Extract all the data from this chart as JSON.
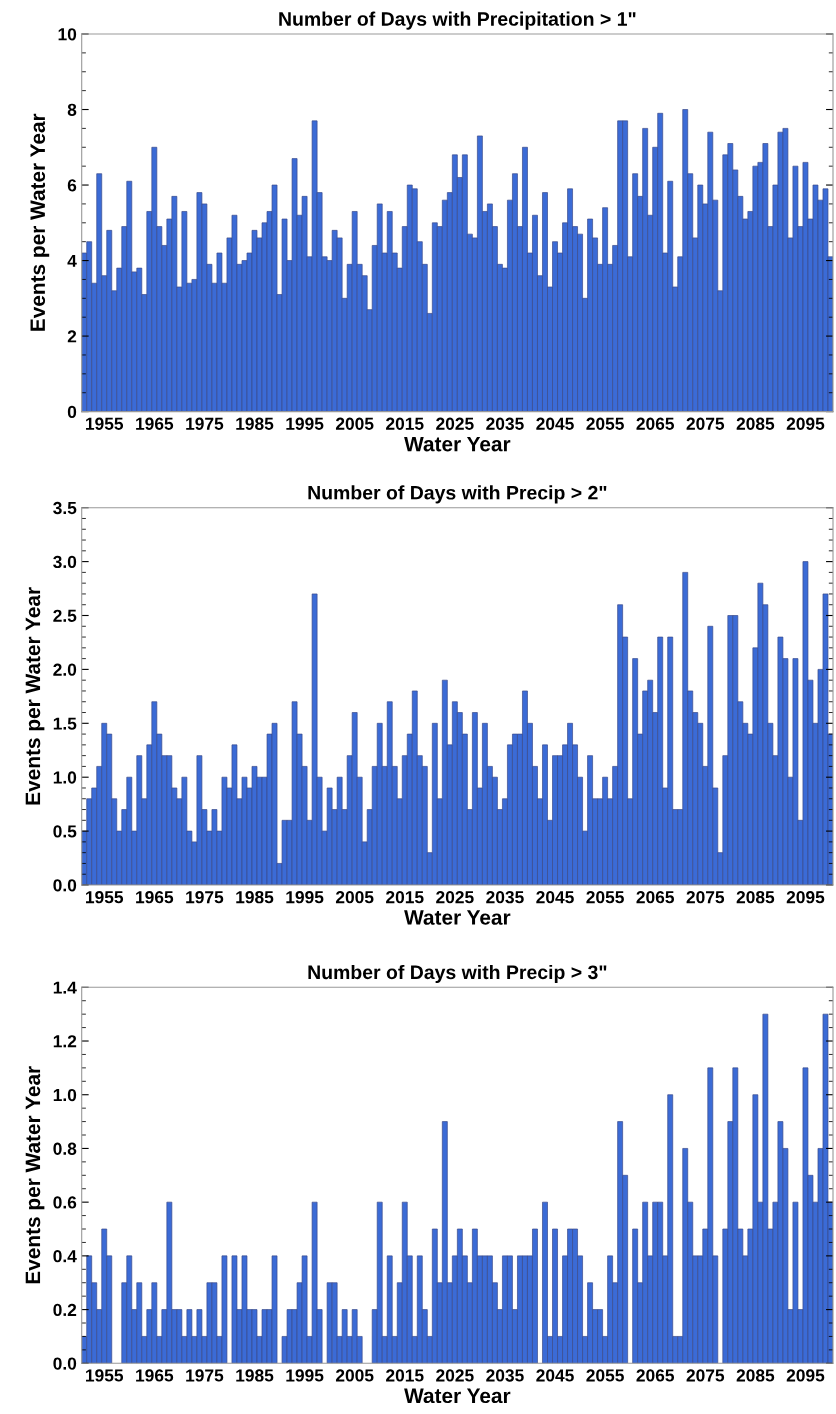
{
  "chart_data": [
    {
      "type": "bar",
      "title": "Number of Days with Precipitation > 1\"",
      "xlabel": "Water Year",
      "ylabel": "Events per Water Year",
      "x": [
        1951,
        1952,
        1953,
        1954,
        1955,
        1956,
        1957,
        1958,
        1959,
        1960,
        1961,
        1962,
        1963,
        1964,
        1965,
        1966,
        1967,
        1968,
        1969,
        1970,
        1971,
        1972,
        1973,
        1974,
        1975,
        1976,
        1977,
        1978,
        1979,
        1980,
        1981,
        1982,
        1983,
        1984,
        1985,
        1986,
        1987,
        1988,
        1989,
        1990,
        1991,
        1992,
        1993,
        1994,
        1995,
        1996,
        1997,
        1998,
        1999,
        2000,
        2001,
        2002,
        2003,
        2004,
        2005,
        2006,
        2007,
        2008,
        2009,
        2010,
        2011,
        2012,
        2013,
        2014,
        2015,
        2016,
        2017,
        2018,
        2019,
        2020,
        2021,
        2022,
        2023,
        2024,
        2025,
        2026,
        2027,
        2028,
        2029,
        2030,
        2031,
        2032,
        2033,
        2034,
        2035,
        2036,
        2037,
        2038,
        2039,
        2040,
        2041,
        2042,
        2043,
        2044,
        2045,
        2046,
        2047,
        2048,
        2049,
        2050,
        2051,
        2052,
        2053,
        2054,
        2055,
        2056,
        2057,
        2058,
        2059,
        2060,
        2061,
        2062,
        2063,
        2064,
        2065,
        2066,
        2067,
        2068,
        2069,
        2070,
        2071,
        2072,
        2073,
        2074,
        2075,
        2076,
        2077,
        2078,
        2079,
        2080,
        2081,
        2082,
        2083,
        2084,
        2085,
        2086,
        2087,
        2088,
        2089,
        2090,
        2091,
        2092,
        2093,
        2094,
        2095,
        2096,
        2097,
        2098,
        2099,
        2100
      ],
      "series": [
        {
          "color": "#3b6bd6",
          "values": [
            4.2,
            4.5,
            3.4,
            6.3,
            3.6,
            4.8,
            3.2,
            3.8,
            4.9,
            6.1,
            3.7,
            3.8,
            3.1,
            5.3,
            7.0,
            4.9,
            4.4,
            5.1,
            5.7,
            3.3,
            5.3,
            3.4,
            3.5,
            5.8,
            5.5,
            3.9,
            3.4,
            4.2,
            3.4,
            4.6,
            5.2,
            3.9,
            4.0,
            4.2,
            4.8,
            4.6,
            5.0,
            5.3,
            6.0,
            3.1,
            5.1,
            4.0,
            6.7,
            5.2,
            5.7,
            4.1,
            7.7,
            5.8,
            4.1,
            4.0,
            4.8,
            4.6,
            3.0,
            3.9,
            5.3,
            3.9,
            3.6,
            2.7,
            4.4,
            5.5,
            4.2,
            5.3,
            4.2,
            3.8,
            4.9,
            6.0,
            5.9,
            4.5,
            3.9,
            2.6,
            5.0,
            4.9,
            5.6,
            5.8,
            6.8,
            6.2,
            6.8,
            4.7,
            4.6,
            7.3,
            5.3,
            5.5,
            4.9,
            3.9,
            3.8,
            5.6,
            6.3,
            4.9,
            7.0,
            4.2,
            5.2,
            3.6,
            5.8,
            3.3,
            4.5,
            4.2,
            5.0,
            5.9,
            4.9,
            4.7,
            3.0,
            5.1,
            4.6,
            3.9,
            5.4,
            3.9,
            4.4,
            7.7,
            7.7,
            4.1,
            6.3,
            5.7,
            7.5,
            5.2,
            7.0,
            7.9,
            4.2,
            6.1,
            3.3,
            4.1,
            8.0,
            6.3,
            4.6,
            6.0,
            5.5,
            7.4,
            5.6,
            3.2,
            6.8,
            7.1,
            6.4,
            5.7,
            5.1,
            5.3,
            6.5,
            6.6,
            7.1,
            4.9,
            6.0,
            7.4,
            7.5,
            4.6,
            6.5,
            4.9,
            6.6,
            5.1,
            6.0,
            5.6,
            5.9,
            4.1
          ]
        }
      ],
      "xlim": [
        1950.5,
        2100.5
      ],
      "xticks": [
        1955,
        1965,
        1975,
        1985,
        1995,
        2005,
        2015,
        2025,
        2035,
        2045,
        2055,
        2065,
        2075,
        2085,
        2095
      ],
      "ylim": [
        0,
        10
      ],
      "yticks": [
        0,
        2,
        4,
        6,
        8,
        10
      ],
      "grid": false,
      "legend": false
    },
    {
      "type": "bar",
      "title": "Number of Days with Precip > 2\"",
      "xlabel": "Water Year",
      "ylabel": "Events per Water Year",
      "x": [
        1951,
        1952,
        1953,
        1954,
        1955,
        1956,
        1957,
        1958,
        1959,
        1960,
        1961,
        1962,
        1963,
        1964,
        1965,
        1966,
        1967,
        1968,
        1969,
        1970,
        1971,
        1972,
        1973,
        1974,
        1975,
        1976,
        1977,
        1978,
        1979,
        1980,
        1981,
        1982,
        1983,
        1984,
        1985,
        1986,
        1987,
        1988,
        1989,
        1990,
        1991,
        1992,
        1993,
        1994,
        1995,
        1996,
        1997,
        1998,
        1999,
        2000,
        2001,
        2002,
        2003,
        2004,
        2005,
        2006,
        2007,
        2008,
        2009,
        2010,
        2011,
        2012,
        2013,
        2014,
        2015,
        2016,
        2017,
        2018,
        2019,
        2020,
        2021,
        2022,
        2023,
        2024,
        2025,
        2026,
        2027,
        2028,
        2029,
        2030,
        2031,
        2032,
        2033,
        2034,
        2035,
        2036,
        2037,
        2038,
        2039,
        2040,
        2041,
        2042,
        2043,
        2044,
        2045,
        2046,
        2047,
        2048,
        2049,
        2050,
        2051,
        2052,
        2053,
        2054,
        2055,
        2056,
        2057,
        2058,
        2059,
        2060,
        2061,
        2062,
        2063,
        2064,
        2065,
        2066,
        2067,
        2068,
        2069,
        2070,
        2071,
        2072,
        2073,
        2074,
        2075,
        2076,
        2077,
        2078,
        2079,
        2080,
        2081,
        2082,
        2083,
        2084,
        2085,
        2086,
        2087,
        2088,
        2089,
        2090,
        2091,
        2092,
        2093,
        2094,
        2095,
        2096,
        2097,
        2098,
        2099,
        2100
      ],
      "series": [
        {
          "color": "#3b6bd6",
          "values": [
            0.5,
            0.8,
            0.9,
            1.1,
            1.5,
            1.4,
            0.8,
            0.5,
            0.7,
            1.0,
            0.5,
            1.2,
            0.8,
            1.3,
            1.7,
            1.4,
            1.2,
            1.2,
            0.9,
            0.8,
            1.0,
            0.5,
            0.4,
            1.2,
            0.7,
            0.5,
            0.7,
            0.5,
            1.0,
            0.9,
            1.3,
            0.8,
            1.0,
            0.9,
            1.1,
            1.0,
            1.0,
            1.4,
            1.5,
            0.2,
            0.6,
            0.6,
            1.7,
            1.4,
            1.1,
            0.6,
            2.7,
            1.0,
            0.5,
            0.9,
            0.7,
            1.0,
            0.7,
            1.2,
            1.6,
            1.0,
            0.4,
            0.7,
            1.1,
            1.5,
            1.1,
            1.7,
            1.1,
            0.8,
            1.2,
            1.4,
            1.8,
            1.2,
            1.1,
            0.3,
            1.5,
            0.8,
            1.9,
            1.3,
            1.7,
            1.6,
            1.4,
            0.7,
            1.6,
            0.9,
            1.5,
            1.1,
            1.0,
            0.7,
            0.8,
            1.3,
            1.4,
            1.4,
            1.8,
            1.5,
            1.1,
            0.8,
            1.3,
            0.6,
            1.2,
            1.2,
            1.3,
            1.5,
            1.3,
            1.0,
            0.5,
            1.2,
            0.8,
            0.8,
            1.0,
            0.8,
            1.1,
            2.6,
            2.3,
            0.8,
            2.1,
            1.4,
            1.8,
            1.9,
            1.6,
            2.3,
            0.9,
            2.3,
            0.7,
            0.7,
            2.9,
            1.8,
            1.6,
            1.5,
            1.1,
            2.4,
            0.9,
            0.3,
            1.2,
            2.5,
            2.5,
            1.7,
            1.5,
            1.4,
            2.2,
            2.8,
            2.6,
            1.5,
            1.2,
            2.3,
            2.1,
            1.0,
            2.1,
            0.6,
            3.0,
            1.9,
            1.5,
            2.0,
            2.7,
            1.4
          ]
        }
      ],
      "xlim": [
        1950.5,
        2100.5
      ],
      "xticks": [
        1955,
        1965,
        1975,
        1985,
        1995,
        2005,
        2015,
        2025,
        2035,
        2045,
        2055,
        2065,
        2075,
        2085,
        2095
      ],
      "ylim": [
        0,
        3.5
      ],
      "yticks": [
        {
          "value": 0,
          "label": "0.0"
        },
        {
          "value": 0.5,
          "label": "0.5"
        },
        {
          "value": 1,
          "label": "1.0"
        },
        {
          "value": 1.5,
          "label": "1.5"
        },
        {
          "value": 2,
          "label": "2.0"
        },
        {
          "value": 2.5,
          "label": "2.5"
        },
        {
          "value": 3,
          "label": "3.0"
        },
        {
          "value": 3.5,
          "label": "3.5"
        }
      ],
      "grid": false,
      "legend": false
    },
    {
      "type": "bar",
      "title": "Number of Days with Precip > 3\"",
      "xlabel": "Water Year",
      "ylabel": "Events per Water Year",
      "x": [
        1951,
        1952,
        1953,
        1954,
        1955,
        1956,
        1957,
        1958,
        1959,
        1960,
        1961,
        1962,
        1963,
        1964,
        1965,
        1966,
        1967,
        1968,
        1969,
        1970,
        1971,
        1972,
        1973,
        1974,
        1975,
        1976,
        1977,
        1978,
        1979,
        1980,
        1981,
        1982,
        1983,
        1984,
        1985,
        1986,
        1987,
        1988,
        1989,
        1990,
        1991,
        1992,
        1993,
        1994,
        1995,
        1996,
        1997,
        1998,
        1999,
        2000,
        2001,
        2002,
        2003,
        2004,
        2005,
        2006,
        2007,
        2008,
        2009,
        2010,
        2011,
        2012,
        2013,
        2014,
        2015,
        2016,
        2017,
        2018,
        2019,
        2020,
        2021,
        2022,
        2023,
        2024,
        2025,
        2026,
        2027,
        2028,
        2029,
        2030,
        2031,
        2032,
        2033,
        2034,
        2035,
        2036,
        2037,
        2038,
        2039,
        2040,
        2041,
        2042,
        2043,
        2044,
        2045,
        2046,
        2047,
        2048,
        2049,
        2050,
        2051,
        2052,
        2053,
        2054,
        2055,
        2056,
        2057,
        2058,
        2059,
        2060,
        2061,
        2062,
        2063,
        2064,
        2065,
        2066,
        2067,
        2068,
        2069,
        2070,
        2071,
        2072,
        2073,
        2074,
        2075,
        2076,
        2077,
        2078,
        2079,
        2080,
        2081,
        2082,
        2083,
        2084,
        2085,
        2086,
        2087,
        2088,
        2089,
        2090,
        2091,
        2092,
        2093,
        2094,
        2095,
        2096,
        2097,
        2098,
        2099,
        2100
      ],
      "series": [
        {
          "color": "#3b6bd6",
          "values": [
            0.1,
            0.4,
            0.3,
            0.2,
            0.5,
            0.4,
            0,
            0,
            0.3,
            0.4,
            0.2,
            0.3,
            0.1,
            0.2,
            0.3,
            0.1,
            0.2,
            0.6,
            0.2,
            0.2,
            0.1,
            0.2,
            0.1,
            0.2,
            0.1,
            0.3,
            0.3,
            0.1,
            0.4,
            0,
            0.4,
            0.2,
            0.4,
            0.2,
            0.2,
            0.1,
            0.2,
            0.2,
            0.4,
            0,
            0.1,
            0.2,
            0.2,
            0.3,
            0.4,
            0.1,
            0.6,
            0.2,
            0,
            0.3,
            0.3,
            0.1,
            0.2,
            0.1,
            0.2,
            0.1,
            0,
            0,
            0.2,
            0.6,
            0.1,
            0.4,
            0.1,
            0.3,
            0.6,
            0.4,
            0.1,
            0.4,
            0.2,
            0.1,
            0.5,
            0.3,
            0.9,
            0.3,
            0.4,
            0.5,
            0.4,
            0.3,
            0.5,
            0.4,
            0.4,
            0.4,
            0.3,
            0.2,
            0.4,
            0.4,
            0.2,
            0.4,
            0.4,
            0.4,
            0.5,
            0,
            0.6,
            0.1,
            0.5,
            0.1,
            0.4,
            0.5,
            0.5,
            0.4,
            0.1,
            0.3,
            0.2,
            0.2,
            0.1,
            0.4,
            0.3,
            0.9,
            0.7,
            0,
            0.5,
            0.3,
            0.6,
            0.4,
            0.6,
            0.6,
            0.4,
            1.0,
            0.1,
            0.1,
            0.8,
            0.6,
            0.4,
            0.4,
            0.5,
            1.1,
            0.4,
            0,
            0.5,
            0.9,
            1.1,
            0.5,
            0.4,
            0.5,
            1.0,
            0.6,
            1.3,
            0.5,
            0.6,
            0.9,
            0.8,
            0.2,
            0.6,
            0.2,
            1.1,
            0.7,
            0.6,
            0.8,
            1.3,
            0.6
          ]
        }
      ],
      "xlim": [
        1950.5,
        2100.5
      ],
      "xticks": [
        1955,
        1965,
        1975,
        1985,
        1995,
        2005,
        2015,
        2025,
        2035,
        2045,
        2055,
        2065,
        2075,
        2085,
        2095
      ],
      "ylim": [
        0,
        1.4
      ],
      "yticks": [
        {
          "value": 0,
          "label": "0.0"
        },
        {
          "value": 0.2,
          "label": "0.2"
        },
        {
          "value": 0.4,
          "label": "0.4"
        },
        {
          "value": 0.6,
          "label": "0.6"
        },
        {
          "value": 0.8,
          "label": "0.8"
        },
        {
          "value": 1,
          "label": "1.0"
        },
        {
          "value": 1.2,
          "label": "1.2"
        },
        {
          "value": 1.4,
          "label": "1.4"
        }
      ],
      "grid": false,
      "legend": false
    }
  ]
}
